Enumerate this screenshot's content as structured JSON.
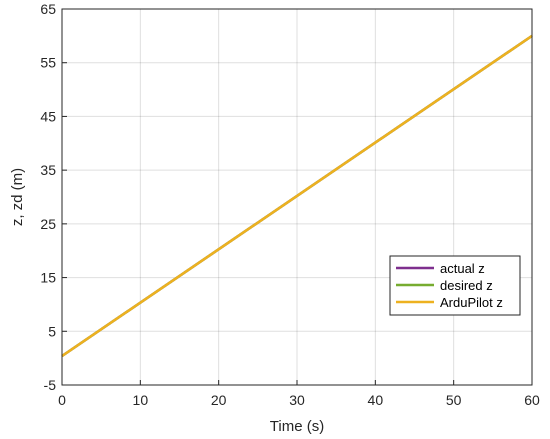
{
  "chart_data": {
    "type": "line",
    "title": "",
    "xlabel": "Time (s)",
    "ylabel": "z, zd (m)",
    "xlim": [
      0,
      60
    ],
    "ylim": [
      -5,
      65
    ],
    "xticks": [
      0,
      10,
      20,
      30,
      40,
      50,
      60
    ],
    "yticks": [
      -5,
      5,
      15,
      25,
      35,
      45,
      55,
      65
    ],
    "grid": true,
    "legend_position": "lower-right",
    "series": [
      {
        "name": "actual z",
        "color": "#7e2f8e",
        "x": [
          0,
          60
        ],
        "y": [
          0.4,
          60
        ]
      },
      {
        "name": "desired z",
        "color": "#77ac30",
        "x": [
          0,
          60
        ],
        "y": [
          0.4,
          60
        ]
      },
      {
        "name": "ArduPilot z",
        "color": "#edb120",
        "x": [
          0,
          60
        ],
        "y": [
          0.4,
          60
        ]
      }
    ]
  }
}
